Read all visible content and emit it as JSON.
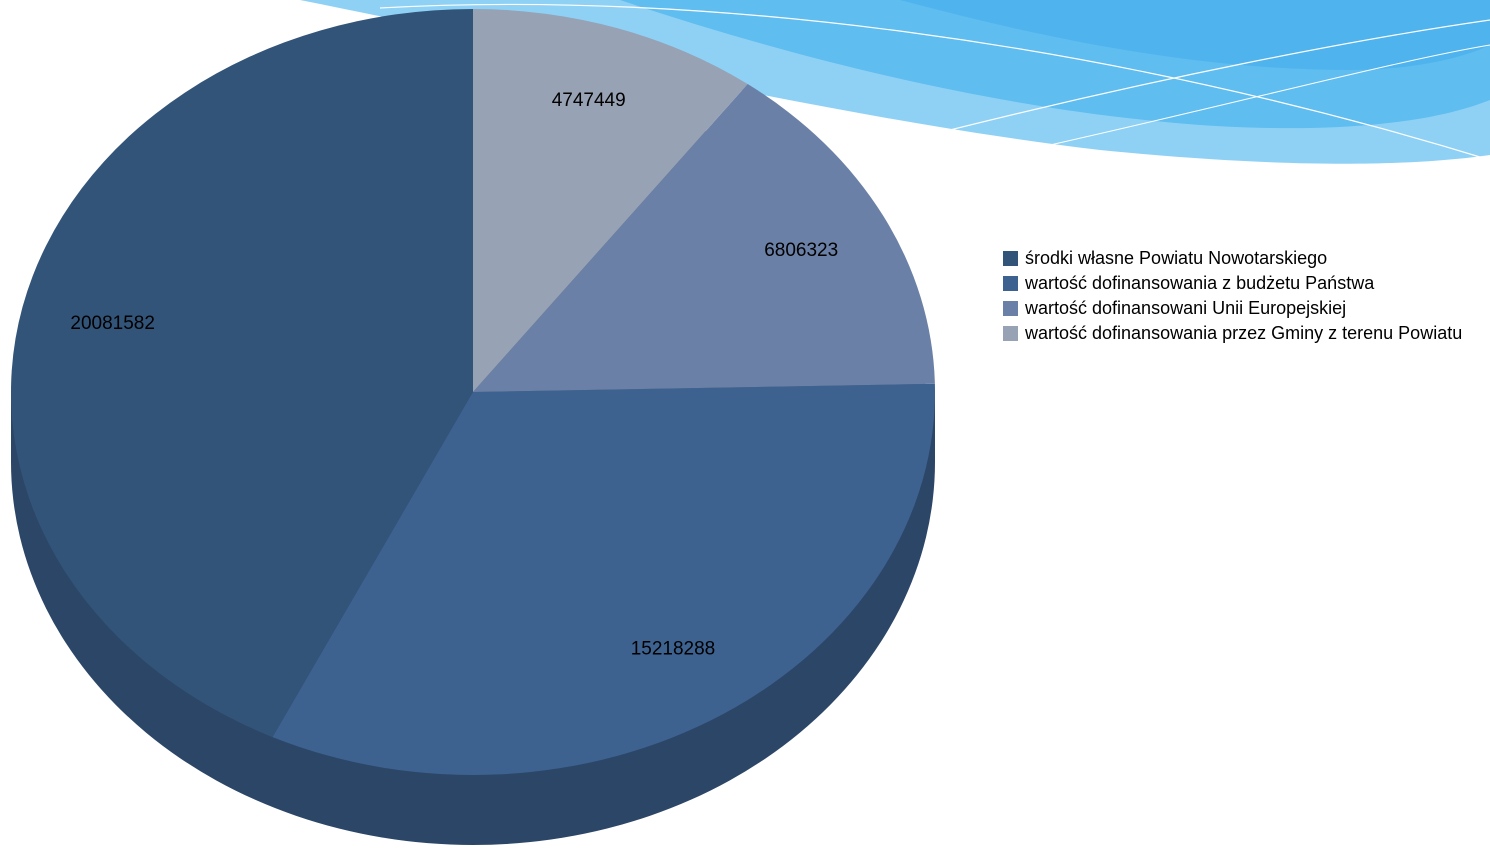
{
  "chart_data": {
    "type": "pie",
    "categories": [
      "środki własne Powiatu Nowotarskiego",
      "wartość dofinansowania z budżetu Państwa",
      "wartość dofinansowani Unii Europejskiej",
      "wartość dofinansowania przez Gminy z terenu Powiatu"
    ],
    "values": [
      20081582,
      15218288,
      6806323,
      4747449
    ],
    "colors": [
      "#335479",
      "#3e6290",
      "#6a80a6",
      "#97a2b4"
    ],
    "legend": "right"
  }
}
